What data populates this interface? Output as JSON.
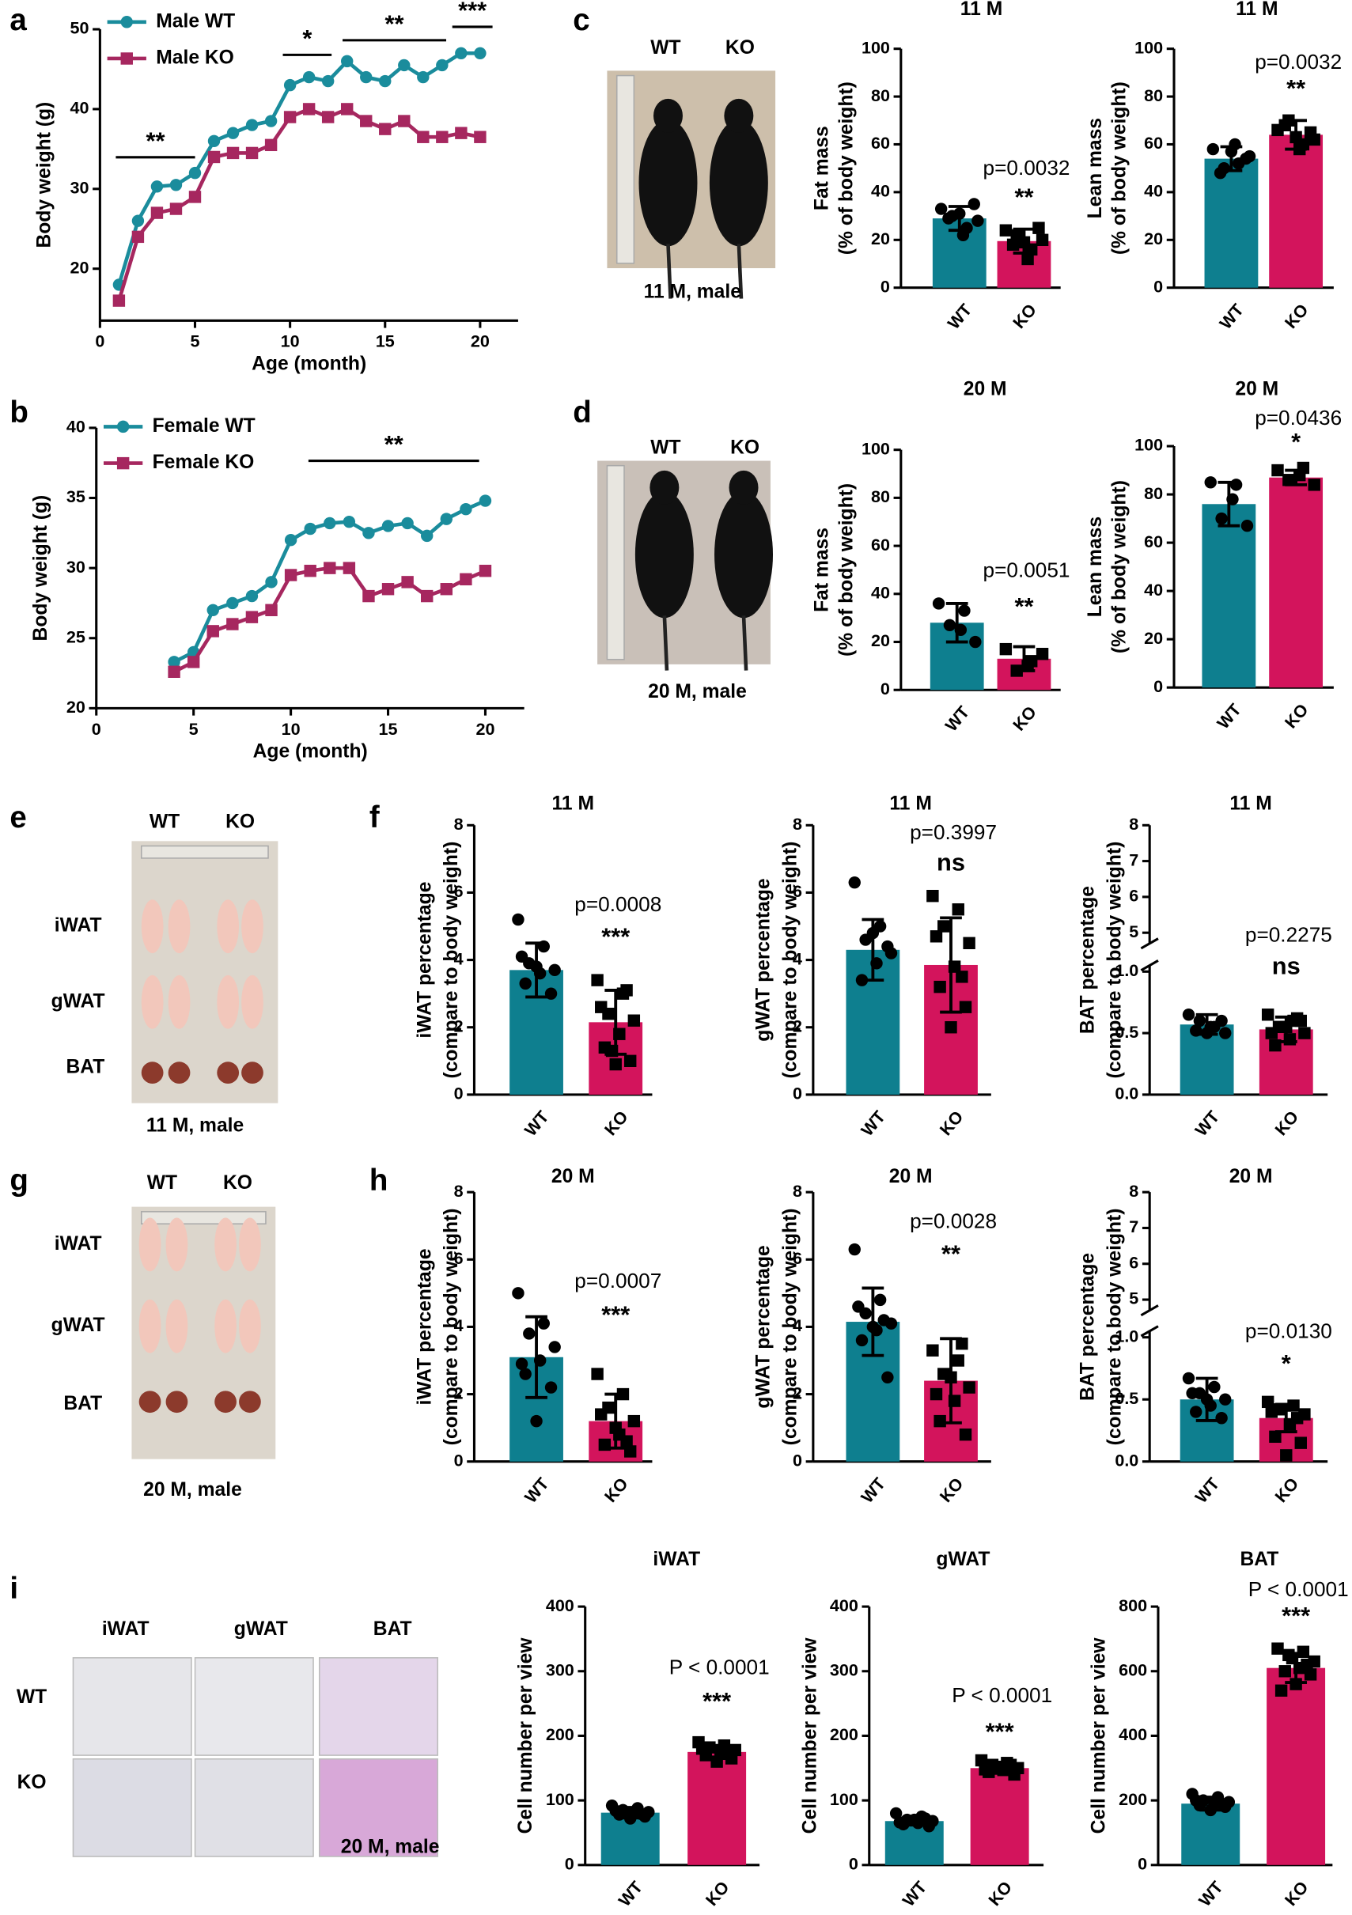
{
  "panel_labels": [
    "a",
    "b",
    "c",
    "d",
    "e",
    "f",
    "g",
    "h",
    "i"
  ],
  "photos": [
    {
      "labels": [
        "WT",
        "KO"
      ],
      "caption": "11 M, male"
    },
    {
      "labels": [
        "WT",
        "KO"
      ],
      "caption": "20 M, male"
    },
    {
      "labels": [
        "WT",
        "KO"
      ],
      "rows": [
        "iWAT",
        "gWAT",
        "BAT"
      ],
      "caption": "11 M, male"
    },
    {
      "labels": [
        "WT",
        "KO"
      ],
      "rows": [
        "iWAT",
        "gWAT",
        "BAT"
      ],
      "caption": "20 M, male"
    },
    {
      "columns": [
        "iWAT",
        "gWAT",
        "BAT"
      ],
      "rows": [
        "WT",
        "KO"
      ],
      "caption": "20 M, male"
    }
  ],
  "chart_data": [
    {
      "type": "line",
      "xlabel": "Age (month)",
      "ylabel": "Body weight (g)",
      "x": [
        1,
        2,
        3,
        4,
        5,
        6,
        7,
        8,
        9,
        10,
        11,
        12,
        13,
        14,
        15,
        16,
        17,
        18,
        19,
        20
      ],
      "series": [
        {
          "name": "Male WT",
          "color": "#1a8c9c",
          "values": [
            18,
            26,
            30.3,
            30.5,
            32,
            36,
            37,
            38,
            38.5,
            43,
            44,
            43.5,
            46,
            44,
            43.5,
            45.5,
            44,
            45.5,
            47,
            47
          ]
        },
        {
          "name": "Male KO",
          "color": "#a6275f",
          "values": [
            16,
            24,
            27,
            27.5,
            29,
            34,
            34.5,
            34.5,
            35.5,
            39,
            40,
            39,
            40,
            38.5,
            37.5,
            38.5,
            36.5,
            36.5,
            37,
            36.5
          ]
        }
      ],
      "xlim": [
        0,
        22
      ],
      "xticks": [
        0,
        5,
        10,
        15,
        20
      ],
      "ylim": [
        13.5,
        50
      ],
      "yticks": [
        20,
        30,
        40,
        50
      ],
      "legend": "upper-left",
      "annotations": [
        "**",
        "*",
        "**",
        "***"
      ]
    },
    {
      "type": "line",
      "xlabel": "Age (month)",
      "ylabel": "Body weight (g)",
      "x": [
        4,
        5,
        6,
        7,
        8,
        9,
        10,
        11,
        12,
        13,
        14,
        15,
        16,
        17,
        18,
        19,
        20
      ],
      "series": [
        {
          "name": "Female WT",
          "color": "#1a8c9c",
          "values": [
            23.3,
            24,
            27,
            27.5,
            28,
            29,
            32,
            32.8,
            33.2,
            33.3,
            32.5,
            33,
            33.2,
            32.3,
            33.5,
            34.2,
            34.8
          ]
        },
        {
          "name": "Female KO",
          "color": "#a6275f",
          "values": [
            22.6,
            23.3,
            25.5,
            26,
            26.5,
            27,
            29.5,
            29.8,
            30,
            30,
            28,
            28.5,
            29,
            28,
            28.5,
            29.2,
            29.8
          ]
        }
      ],
      "xlim": [
        0,
        22
      ],
      "xticks": [
        0,
        5,
        10,
        15,
        20
      ],
      "ylim": [
        20,
        40
      ],
      "yticks": [
        20,
        25,
        30,
        35,
        40
      ],
      "legend": "upper-left",
      "annotations": [
        "**"
      ]
    },
    {
      "type": "bar",
      "title": "11 M",
      "ylabel": [
        "Fat mass",
        "(% of body weight)"
      ],
      "categories": [
        "WT",
        "KO"
      ],
      "values": [
        29,
        19.5
      ],
      "errors": [
        5,
        5
      ],
      "points": [
        [
          33,
          25,
          30,
          28,
          22,
          29,
          35,
          31
        ],
        [
          24,
          16,
          22,
          20,
          12,
          18,
          25,
          19
        ]
      ],
      "colors": [
        "#0e7f8f",
        "#d3145c"
      ],
      "ylim": [
        0,
        100
      ],
      "yticks": [
        0,
        20,
        40,
        60,
        80,
        100
      ],
      "annotations": [
        "p=0.0032",
        "**"
      ]
    },
    {
      "type": "bar",
      "title": "11 M",
      "ylabel": [
        "Lean mass",
        "(% of body weight)"
      ],
      "categories": [
        "WT",
        "KO"
      ],
      "values": [
        54,
        64
      ],
      "errors": [
        5,
        6
      ],
      "points": [
        [
          58,
          52,
          50,
          55,
          60,
          48,
          54,
          57
        ],
        [
          66,
          60,
          70,
          62,
          58,
          68,
          65,
          63
        ]
      ],
      "colors": [
        "#0e7f8f",
        "#d3145c"
      ],
      "ylim": [
        0,
        100
      ],
      "yticks": [
        0,
        20,
        40,
        60,
        80,
        100
      ],
      "annotations": [
        "p=0.0032",
        "**"
      ]
    },
    {
      "type": "bar",
      "title": "20 M",
      "ylabel": [
        "Fat mass",
        "(% of body weight)"
      ],
      "categories": [
        "WT",
        "KO"
      ],
      "values": [
        28,
        13
      ],
      "errors": [
        8,
        5
      ],
      "points": [
        [
          36,
          33,
          27,
          20,
          25
        ],
        [
          17,
          12,
          8,
          15,
          10
        ]
      ],
      "colors": [
        "#0e7f8f",
        "#d3145c"
      ],
      "ylim": [
        0,
        100
      ],
      "yticks": [
        0,
        20,
        40,
        60,
        80,
        100
      ],
      "annotations": [
        "p=0.0051",
        "**"
      ]
    },
    {
      "type": "bar",
      "title": "20 M",
      "ylabel": [
        "Lean mass",
        "(% of body weight)"
      ],
      "categories": [
        "WT",
        "KO"
      ],
      "values": [
        76,
        87
      ],
      "errors": [
        9,
        3
      ],
      "points": [
        [
          85,
          84,
          70,
          67,
          78
        ],
        [
          90,
          91,
          86,
          84,
          88
        ]
      ],
      "colors": [
        "#0e7f8f",
        "#d3145c"
      ],
      "ylim": [
        0,
        100
      ],
      "yticks": [
        0,
        20,
        40,
        60,
        80,
        100
      ],
      "annotations": [
        "p=0.0436",
        "*"
      ]
    },
    {
      "type": "bar",
      "title": "11 M",
      "ylabel": [
        "iWAT percentage",
        "(compare to body weight)"
      ],
      "categories": [
        "WT",
        "KO"
      ],
      "values": [
        3.7,
        2.15
      ],
      "errors": [
        0.8,
        0.95
      ],
      "points": [
        [
          5.2,
          4.4,
          3.9,
          3.7,
          3.6,
          3.3,
          3.0,
          3.8,
          4.1
        ],
        [
          3.4,
          3.0,
          2.4,
          2.2,
          1.8,
          1.4,
          1.0,
          0.9,
          2.6,
          3.1,
          1.3
        ]
      ],
      "colors": [
        "#0e7f8f",
        "#d3145c"
      ],
      "ylim": [
        0,
        8
      ],
      "yticks": [
        0,
        2,
        4,
        6,
        8
      ],
      "annotations": [
        "p=0.0008",
        "***"
      ]
    },
    {
      "type": "bar",
      "title": "11 M",
      "ylabel": [
        "gWAT percentage",
        "(compare to body weight)"
      ],
      "categories": [
        "WT",
        "KO"
      ],
      "values": [
        4.3,
        3.85
      ],
      "errors": [
        0.9,
        1.4
      ],
      "points": [
        [
          6.3,
          5.0,
          4.6,
          4.2,
          3.9,
          3.4,
          4.4,
          4.8
        ],
        [
          5.9,
          5.5,
          5.0,
          4.5,
          3.8,
          3.2,
          2.6,
          2.0,
          4.7,
          3.5
        ]
      ],
      "colors": [
        "#0e7f8f",
        "#d3145c"
      ],
      "ylim": [
        0,
        8
      ],
      "yticks": [
        0,
        2,
        4,
        6,
        8
      ],
      "annotations": [
        "p=0.3997",
        "ns"
      ]
    },
    {
      "type": "bar",
      "title": "11 M",
      "ylabel": [
        "BAT percentage",
        "(compare to body weight)"
      ],
      "categories": [
        "WT",
        "KO"
      ],
      "values": [
        0.57,
        0.53
      ],
      "errors": [
        0.08,
        0.1
      ],
      "points": [
        [
          0.65,
          0.55,
          0.6,
          0.5,
          0.55,
          0.52,
          0.6,
          0.5
        ],
        [
          0.65,
          0.6,
          0.55,
          0.5,
          0.45,
          0.4,
          0.6,
          0.55,
          0.5,
          0.62
        ]
      ],
      "colors": [
        "#0e7f8f",
        "#d3145c"
      ],
      "ylim": [
        0,
        1.05
      ],
      "yticks": [
        {
          "value": 0,
          "label": "0.0"
        },
        0.5,
        {
          "value": 1,
          "label": "1.0"
        }
      ],
      "upper_ylim": [
        4.7,
        8
      ],
      "upper_yticks": [
        5,
        6,
        7,
        8
      ],
      "annotations": [
        "p=0.2275",
        "ns"
      ]
    },
    {
      "type": "bar",
      "title": "20 M",
      "ylabel": [
        "iWAT percentage",
        "(compare to body weight)"
      ],
      "categories": [
        "WT",
        "KO"
      ],
      "values": [
        3.1,
        1.2
      ],
      "errors": [
        1.2,
        0.8
      ],
      "points": [
        [
          5.0,
          4.1,
          3.8,
          3.4,
          3.0,
          2.6,
          2.2,
          1.2,
          2.9
        ],
        [
          2.6,
          2.0,
          1.6,
          1.2,
          0.8,
          0.5,
          0.3,
          1.0,
          1.4,
          0.6
        ]
      ],
      "colors": [
        "#0e7f8f",
        "#d3145c"
      ],
      "ylim": [
        0,
        8
      ],
      "yticks": [
        0,
        2,
        4,
        6,
        8
      ],
      "annotations": [
        "p=0.0007",
        "***"
      ]
    },
    {
      "type": "bar",
      "title": "20 M",
      "ylabel": [
        "gWAT percentage",
        "(compare to body weight)"
      ],
      "categories": [
        "WT",
        "KO"
      ],
      "values": [
        4.15,
        2.4
      ],
      "errors": [
        1.0,
        1.25
      ],
      "points": [
        [
          6.3,
          4.8,
          4.4,
          4.1,
          3.9,
          3.6,
          2.5,
          4.0,
          4.6,
          4.2
        ],
        [
          3.3,
          3.0,
          2.6,
          2.2,
          1.8,
          1.2,
          0.8,
          2.5,
          2.0,
          3.5
        ]
      ],
      "colors": [
        "#0e7f8f",
        "#d3145c"
      ],
      "ylim": [
        0,
        8
      ],
      "yticks": [
        0,
        2,
        4,
        6,
        8
      ],
      "annotations": [
        "p=0.0028",
        "**"
      ]
    },
    {
      "type": "bar",
      "title": "20 M",
      "ylabel": [
        "BAT percentage",
        "(compare to body weight)"
      ],
      "categories": [
        "WT",
        "KO"
      ],
      "values": [
        0.5,
        0.35
      ],
      "errors": [
        0.17,
        0.11
      ],
      "points": [
        [
          0.67,
          0.6,
          0.55,
          0.5,
          0.45,
          0.4,
          0.35,
          0.5,
          0.55
        ],
        [
          0.48,
          0.45,
          0.42,
          0.38,
          0.3,
          0.2,
          0.15,
          0.05,
          0.4,
          0.35
        ]
      ],
      "colors": [
        "#0e7f8f",
        "#d3145c"
      ],
      "ylim": [
        0,
        1.05
      ],
      "yticks": [
        {
          "value": 0,
          "label": "0.0"
        },
        0.5,
        {
          "value": 1,
          "label": "1.0"
        }
      ],
      "upper_ylim": [
        4.7,
        8
      ],
      "upper_yticks": [
        5,
        6,
        7,
        8
      ],
      "annotations": [
        "p=0.0130",
        "*"
      ]
    },
    {
      "type": "bar",
      "title": "iWAT",
      "ylabel": [
        "Cell number per view"
      ],
      "categories": [
        "WT",
        "KO"
      ],
      "values": [
        81,
        175
      ],
      "errors": [
        8,
        10
      ],
      "points": [
        [
          92,
          88,
          85,
          82,
          80,
          78,
          75,
          72,
          84,
          79
        ],
        [
          190,
          185,
          182,
          178,
          175,
          170,
          165,
          160,
          180,
          172
        ]
      ],
      "colors": [
        "#0e7f8f",
        "#d3145c"
      ],
      "ylim": [
        0,
        400
      ],
      "yticks": [
        0,
        100,
        200,
        300,
        400
      ],
      "annotations": [
        "P < 0.0001",
        "***"
      ]
    },
    {
      "type": "bar",
      "title": "gWAT",
      "ylabel": [
        "Cell number per view"
      ],
      "categories": [
        "WT",
        "KO"
      ],
      "values": [
        68,
        150
      ],
      "errors": [
        6,
        8
      ],
      "points": [
        [
          80,
          75,
          70,
          68,
          65,
          63,
          60,
          70,
          66,
          72
        ],
        [
          162,
          158,
          155,
          150,
          147,
          144,
          140,
          152,
          148,
          155
        ]
      ],
      "colors": [
        "#0e7f8f",
        "#d3145c"
      ],
      "ylim": [
        0,
        400
      ],
      "yticks": [
        0,
        100,
        200,
        300,
        400
      ],
      "annotations": [
        "P < 0.0001",
        "***"
      ]
    },
    {
      "type": "bar",
      "title": "BAT",
      "ylabel": [
        "Cell number per view"
      ],
      "categories": [
        "WT",
        "KO"
      ],
      "values": [
        190,
        610
      ],
      "errors": [
        20,
        45
      ],
      "points": [
        [
          220,
          210,
          200,
          195,
          190,
          185,
          180,
          170,
          200,
          190
        ],
        [
          670,
          660,
          650,
          630,
          610,
          600,
          590,
          560,
          540,
          620,
          640
        ]
      ],
      "colors": [
        "#0e7f8f",
        "#d3145c"
      ],
      "ylim": [
        0,
        800
      ],
      "yticks": [
        0,
        200,
        400,
        600,
        800
      ],
      "annotations": [
        "P < 0.0001",
        "***"
      ]
    }
  ]
}
